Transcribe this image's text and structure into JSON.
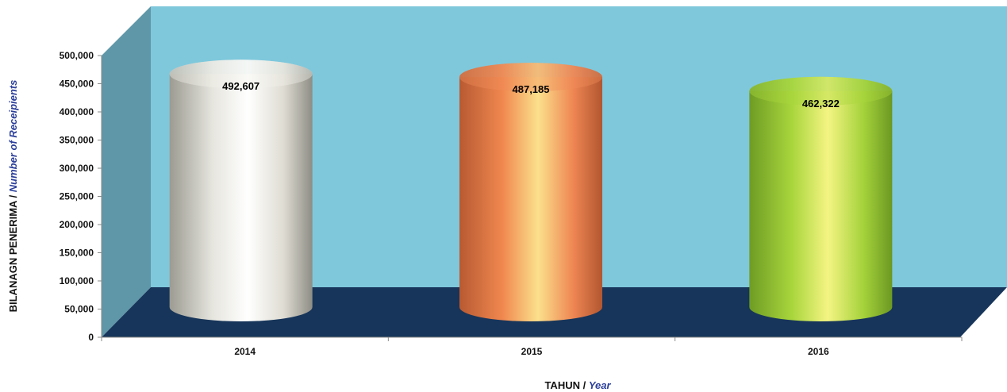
{
  "chart_data": {
    "type": "bar",
    "style": "3d-cylinder",
    "categories": [
      "2014",
      "2015",
      "2016"
    ],
    "values": [
      492607,
      487185,
      462322
    ],
    "data_labels": [
      "492,607",
      "487,185",
      "462,322"
    ],
    "bar_colors": [
      "#f2f1ea",
      "#f08c5a",
      "#a9d63c"
    ],
    "ylim": [
      0,
      500000
    ],
    "yticks": [
      0,
      50000,
      100000,
      150000,
      200000,
      250000,
      300000,
      350000,
      400000,
      450000,
      500000
    ],
    "ytick_labels": [
      "0",
      "50,000",
      "100,000",
      "150,000",
      "200,000",
      "250,000",
      "300,000",
      "350,000",
      "400,000",
      "450,000",
      "500,000"
    ],
    "xlabel": {
      "main": "TAHUN / ",
      "en": "Year"
    },
    "ylabel": {
      "main": "BILANAGN PENERIMA / ",
      "en": "Number of Receipients"
    },
    "grid": false,
    "legend": "none",
    "colors": {
      "back_wall": "#7fc8dc",
      "side_wall": "#5f97a8",
      "floor": "#17355a",
      "english_text": "#2b3f9a"
    }
  }
}
